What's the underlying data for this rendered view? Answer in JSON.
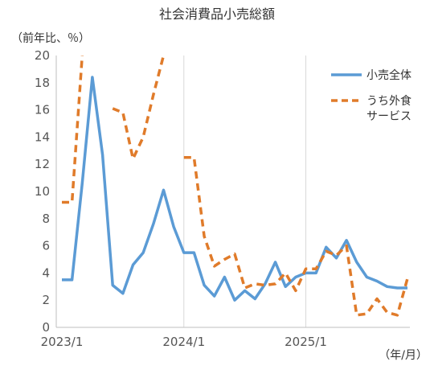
{
  "chart_data": {
    "type": "line",
    "title": "社会消費品小売総額",
    "ylabel": "（前年比、％）",
    "xlabel": "（年/月）",
    "ylim": [
      0,
      20
    ],
    "yticks": [
      0,
      2,
      4,
      6,
      8,
      10,
      12,
      14,
      16,
      18,
      20
    ],
    "x_tick_labels": [
      {
        "label": "2023/1",
        "index": 0
      },
      {
        "label": "2024/1",
        "index": 12
      },
      {
        "label": "2025/1",
        "index": 24
      }
    ],
    "grid": "vertical",
    "legend_position": "top-right",
    "months": [
      "2023/1",
      "2023/2",
      "2023/3",
      "2023/4",
      "2023/5",
      "2023/6",
      "2023/7",
      "2023/8",
      "2023/9",
      "2023/10",
      "2023/11",
      "2023/12",
      "2024/1",
      "2024/2",
      "2024/3",
      "2024/4",
      "2024/5",
      "2024/6",
      "2024/7",
      "2024/8",
      "2024/9",
      "2024/10",
      "2024/11",
      "2024/12",
      "2025/1",
      "2025/2",
      "2025/3",
      "2025/4",
      "2025/5",
      "2025/6",
      "2025/7",
      "2025/8",
      "2025/9",
      "2025/10",
      "2025/11"
    ],
    "series": [
      {
        "name": "小売全体",
        "color": "#5b9bd5",
        "style": "solid",
        "values": [
          3.5,
          3.5,
          10.6,
          18.4,
          12.7,
          3.1,
          2.5,
          4.6,
          5.5,
          7.6,
          10.1,
          7.4,
          5.5,
          5.5,
          3.1,
          2.3,
          3.7,
          2.0,
          2.7,
          2.1,
          3.2,
          4.8,
          3.0,
          3.7,
          4.0,
          4.0,
          5.9,
          5.1,
          6.4,
          4.8,
          3.7,
          3.4,
          3.0,
          2.9,
          2.9
        ]
      },
      {
        "name": "うち外食サービス",
        "color": "#e07b2a",
        "style": "dashed",
        "values": [
          9.2,
          9.2,
          20,
          null,
          null,
          16.1,
          15.8,
          12.4,
          14.0,
          17.1,
          20,
          null,
          12.5,
          12.5,
          6.7,
          4.5,
          5.0,
          5.4,
          2.9,
          3.2,
          3.1,
          3.2,
          4.0,
          2.7,
          4.3,
          4.3,
          5.6,
          5.3,
          6.0,
          0.9,
          1.0,
          2.1,
          1.1,
          0.9,
          3.6
        ]
      }
    ]
  }
}
